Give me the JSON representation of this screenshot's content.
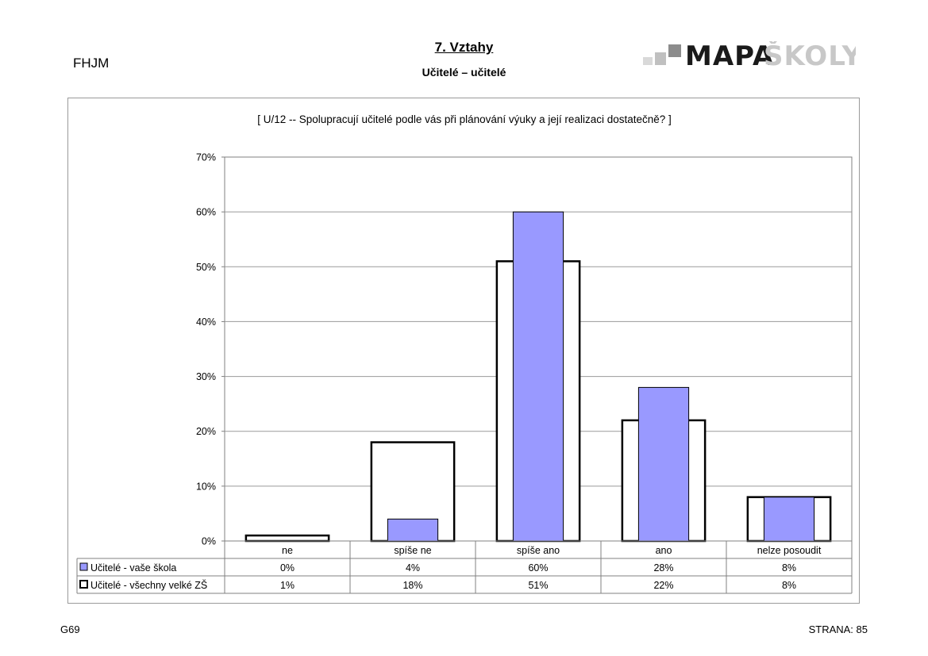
{
  "header": {
    "school_code": "FHJM",
    "section_title": "7. Vztahy",
    "subsection_title": "Učitelé – učitelé",
    "logo": {
      "part1": "MAPA",
      "part2": "ŠKOLY"
    }
  },
  "chart_data": {
    "type": "bar",
    "title": "[ U/12 --  Spolupracují učitelé podle vás při plánování výuky a její realizaci dostatečně? ]",
    "categories": [
      "ne",
      "spíše ne",
      "spíše ano",
      "ano",
      "nelze posoudit"
    ],
    "y_ticks": [
      "0%",
      "10%",
      "20%",
      "30%",
      "40%",
      "50%",
      "60%",
      "70%"
    ],
    "ylim": [
      0,
      70
    ],
    "grid": true,
    "legend": "data-table",
    "series": [
      {
        "name": "Učitelé - vaše škola",
        "values": [
          0,
          4,
          60,
          28,
          8
        ],
        "labels": [
          "0%",
          "4%",
          "60%",
          "28%",
          "8%"
        ],
        "color": "#9999ff"
      },
      {
        "name": "Učitelé - všechny velké ZŠ",
        "values": [
          1,
          18,
          51,
          22,
          8
        ],
        "labels": [
          "1%",
          "18%",
          "51%",
          "22%",
          "8%"
        ],
        "color": "#ffffff"
      }
    ]
  },
  "footer": {
    "left": "G69",
    "right": "STRANA: 85"
  }
}
